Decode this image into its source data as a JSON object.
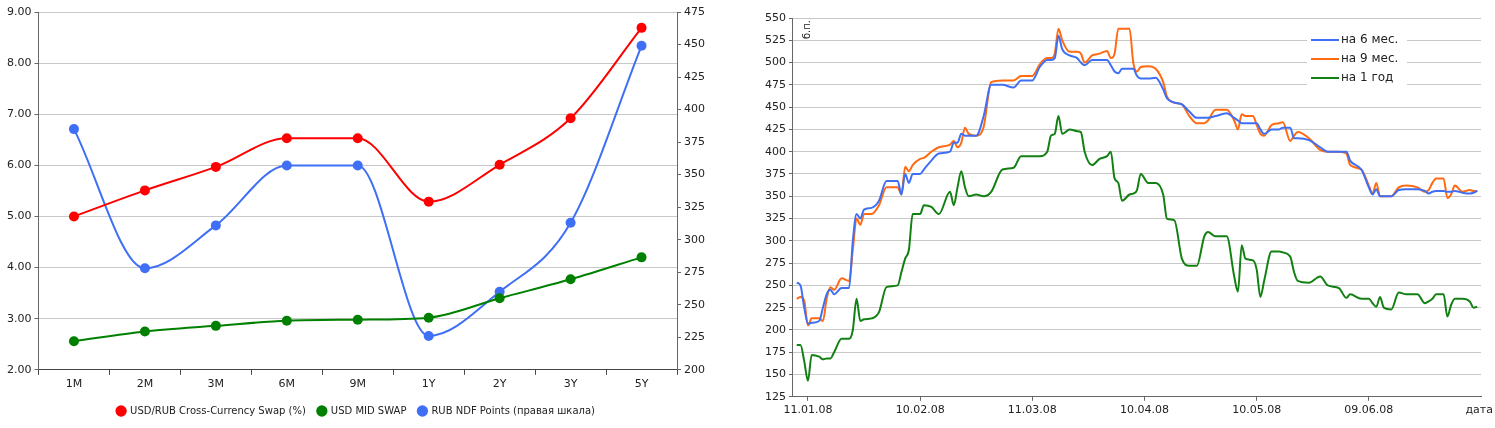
{
  "chart_data": [
    {
      "type": "line",
      "categories": [
        "1M",
        "2M",
        "3M",
        "6M",
        "9M",
        "1Y",
        "2Y",
        "3Y",
        "5Y"
      ],
      "series": [
        {
          "name": "USD/RUB Cross-Currency Swap (%)",
          "color": "#ff0000",
          "values": [
            5.0,
            5.51,
            5.97,
            6.53,
            6.53,
            5.29,
            6.01,
            6.92,
            8.69
          ]
        },
        {
          "name": "USD MID SWAP",
          "color": "#008000",
          "values": [
            2.56,
            2.75,
            2.86,
            2.96,
            2.98,
            3.02,
            3.4,
            3.77,
            4.2
          ]
        },
        {
          "name": "RUB NDF Points (правая шкала)",
          "color": "#3f6ff5",
          "axis": "y2",
          "values": [
            385,
            278,
            311,
            357,
            357,
            226,
            260,
            313,
            449
          ]
        }
      ],
      "ylim": [
        2,
        9
      ],
      "yticks": [
        {
          "value": 2,
          "label": "2.00"
        },
        {
          "value": 3,
          "label": "3.00"
        },
        {
          "value": 4,
          "label": "4.00"
        },
        {
          "value": 5,
          "label": "5.00"
        },
        {
          "value": 6,
          "label": "6.00"
        },
        {
          "value": 7,
          "label": "7.00"
        },
        {
          "value": 8,
          "label": "8.00"
        },
        {
          "value": 9,
          "label": "9.00"
        }
      ],
      "y2lim": [
        200,
        475
      ],
      "y2ticks": [
        200,
        225,
        250,
        275,
        300,
        325,
        350,
        375,
        400,
        425,
        450,
        475
      ],
      "grid": "y",
      "legend": "bottom",
      "marker": "circle",
      "line_style": "solid"
    },
    {
      "type": "line",
      "xlabel": "дата",
      "ylabel": "б.п.",
      "x": [
        "2008-01-08",
        "2008-01-09",
        "2008-01-10",
        "2008-01-11",
        "2008-01-12",
        "2008-01-14",
        "2008-01-15",
        "2008-01-16",
        "2008-01-17",
        "2008-01-18",
        "2008-01-20",
        "2008-01-22",
        "2008-01-23",
        "2008-01-24",
        "2008-01-25",
        "2008-01-26",
        "2008-01-28",
        "2008-01-30",
        "2008-02-01",
        "2008-02-04",
        "2008-02-05",
        "2008-02-06",
        "2008-02-07",
        "2008-02-08",
        "2008-02-10",
        "2008-02-11",
        "2008-02-13",
        "2008-02-15",
        "2008-02-18",
        "2008-02-19",
        "2008-02-20",
        "2008-02-21",
        "2008-02-22",
        "2008-02-23",
        "2008-02-25",
        "2008-02-27",
        "2008-02-29",
        "2008-03-03",
        "2008-03-06",
        "2008-03-08",
        "2008-03-11",
        "2008-03-13",
        "2008-03-15",
        "2008-03-16",
        "2008-03-17",
        "2008-03-18",
        "2008-03-19",
        "2008-03-21",
        "2008-03-23",
        "2008-03-24",
        "2008-03-25",
        "2008-03-27",
        "2008-03-29",
        "2008-03-31",
        "2008-04-01",
        "2008-04-02",
        "2008-04-03",
        "2008-04-04",
        "2008-04-06",
        "2008-04-07",
        "2008-04-08",
        "2008-04-09",
        "2008-04-11",
        "2008-04-13",
        "2008-04-15",
        "2008-04-16",
        "2008-04-18",
        "2008-04-20",
        "2008-04-22",
        "2008-04-24",
        "2008-04-26",
        "2008-04-27",
        "2008-04-29",
        "2008-05-02",
        "2008-05-04",
        "2008-05-05",
        "2008-05-06",
        "2008-05-07",
        "2008-05-09",
        "2008-05-10",
        "2008-05-11",
        "2008-05-12",
        "2008-05-14",
        "2008-05-16",
        "2008-05-17",
        "2008-05-19",
        "2008-05-20",
        "2008-05-21",
        "2008-05-24",
        "2008-05-27",
        "2008-05-29",
        "2008-06-01",
        "2008-06-03",
        "2008-06-04",
        "2008-06-07",
        "2008-06-09",
        "2008-06-10",
        "2008-06-11",
        "2008-06-12",
        "2008-06-13",
        "2008-06-15",
        "2008-06-17",
        "2008-06-19",
        "2008-06-22",
        "2008-06-24",
        "2008-06-25",
        "2008-06-26",
        "2008-06-27",
        "2008-06-28",
        "2008-06-29",
        "2008-06-30",
        "2008-07-01",
        "2008-07-02",
        "2008-07-04",
        "2008-07-06",
        "2008-07-07",
        "2008-07-08"
      ],
      "series": [
        {
          "name": "на 6 мес.",
          "color": "#3f6ff5",
          "values": [
            253,
            250,
            225,
            207,
            208,
            210,
            225,
            240,
            245,
            240,
            247,
            247,
            300,
            330,
            325,
            335,
            337,
            345,
            367,
            367,
            352,
            375,
            365,
            375,
            375,
            380,
            390,
            398,
            400,
            410,
            410,
            420,
            418,
            418,
            418,
            440,
            475,
            475,
            472,
            480,
            480,
            495,
            503,
            503,
            505,
            530,
            515,
            508,
            505,
            500,
            497,
            503,
            503,
            503,
            497,
            490,
            488,
            493,
            493,
            493,
            485,
            482,
            482,
            483,
            470,
            460,
            455,
            453,
            445,
            438,
            438,
            438,
            440,
            443,
            438,
            435,
            432,
            432,
            432,
            432,
            425,
            420,
            425,
            425,
            427,
            427,
            415,
            415,
            413,
            405,
            400,
            400,
            400,
            390,
            380,
            360,
            352,
            358,
            350,
            350,
            350,
            357,
            358,
            358,
            356,
            353,
            355,
            356,
            356,
            356,
            355,
            355,
            356,
            354,
            353,
            354,
            356
          ]
        },
        {
          "name": "на 9 мес.",
          "color": "#ff6a13",
          "values": [
            235,
            237,
            233,
            205,
            213,
            213,
            210,
            235,
            248,
            245,
            258,
            255,
            290,
            325,
            318,
            330,
            330,
            340,
            360,
            360,
            352,
            383,
            378,
            385,
            392,
            393,
            400,
            405,
            408,
            412,
            405,
            410,
            427,
            420,
            418,
            428,
            478,
            480,
            480,
            485,
            485,
            498,
            505,
            505,
            510,
            538,
            525,
            512,
            512,
            510,
            500,
            508,
            510,
            513,
            505,
            510,
            538,
            538,
            538,
            500,
            490,
            495,
            496,
            493,
            478,
            462,
            455,
            453,
            440,
            432,
            432,
            435,
            447,
            447,
            435,
            425,
            442,
            440,
            440,
            430,
            420,
            418,
            430,
            432,
            433,
            412,
            418,
            422,
            415,
            402,
            400,
            400,
            398,
            385,
            380,
            362,
            353,
            365,
            350,
            350,
            350,
            360,
            362,
            360,
            355,
            357,
            365,
            370,
            370,
            370,
            348,
            352,
            362,
            355,
            357,
            356,
            356
          ]
        },
        {
          "name": "на 1 год",
          "color": "#138013",
          "values": [
            183,
            183,
            165,
            143,
            172,
            170,
            167,
            168,
            168,
            175,
            190,
            190,
            200,
            235,
            210,
            212,
            213,
            220,
            248,
            250,
            265,
            280,
            290,
            330,
            330,
            340,
            338,
            330,
            355,
            340,
            360,
            378,
            360,
            350,
            352,
            350,
            355,
            380,
            382,
            395,
            395,
            395,
            400,
            418,
            420,
            440,
            420,
            425,
            423,
            422,
            400,
            385,
            392,
            395,
            400,
            370,
            365,
            345,
            352,
            353,
            357,
            375,
            365,
            365,
            352,
            325,
            323,
            280,
            272,
            272,
            305,
            310,
            305,
            305,
            260,
            243,
            295,
            280,
            278,
            268,
            237,
            255,
            288,
            288,
            287,
            282,
            265,
            255,
            253,
            260,
            250,
            247,
            236,
            240,
            235,
            235,
            230,
            226,
            237,
            225,
            223,
            242,
            240,
            240,
            230,
            232,
            235,
            240,
            240,
            240,
            215,
            228,
            235,
            235,
            232,
            225,
            226
          ]
        }
      ],
      "xlim": [
        "2008-01-07",
        "2008-07-09"
      ],
      "xticks": [
        {
          "value": "2008-01-11",
          "label": "11.01.08"
        },
        {
          "value": "2008-02-10",
          "label": "10.02.08"
        },
        {
          "value": "2008-03-11",
          "label": "11.03.08"
        },
        {
          "value": "2008-04-10",
          "label": "10.04.08"
        },
        {
          "value": "2008-05-10",
          "label": "10.05.08"
        },
        {
          "value": "2008-06-09",
          "label": "09.06.08"
        }
      ],
      "ylim": [
        125,
        550
      ],
      "yticks": [
        125,
        150,
        175,
        200,
        225,
        250,
        275,
        300,
        325,
        350,
        375,
        400,
        425,
        450,
        475,
        500,
        525,
        550
      ],
      "grid": "y",
      "legend": "top right",
      "marker": "none",
      "line_style": "solid"
    }
  ]
}
